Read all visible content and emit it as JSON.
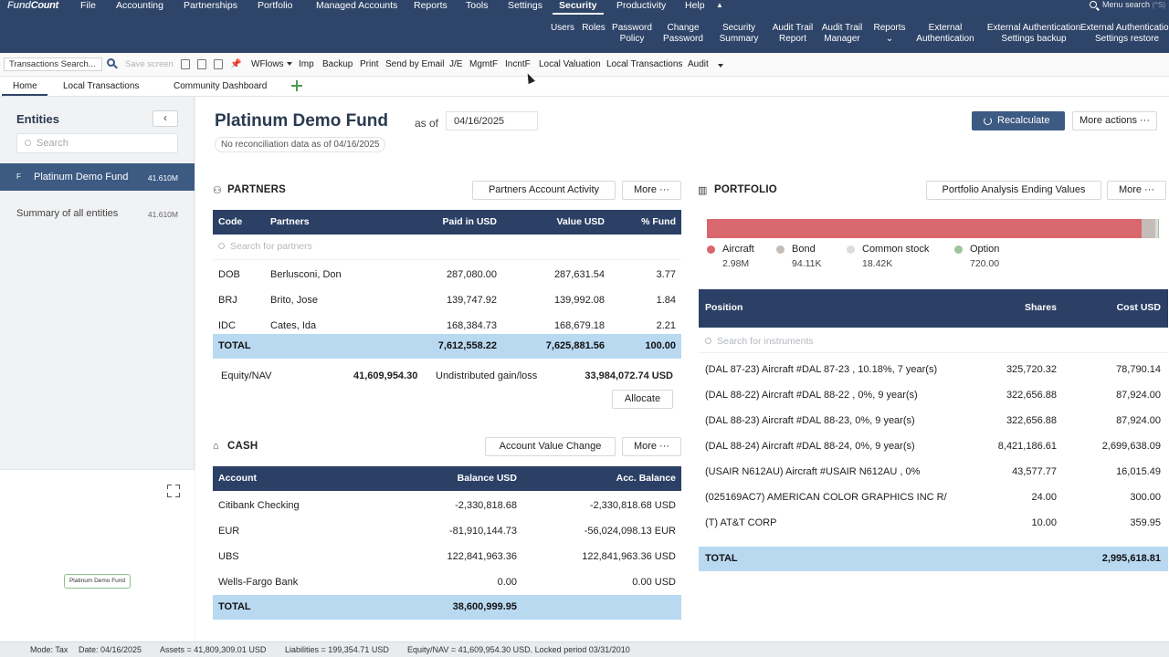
{
  "app": {
    "logo_a": "Fund",
    "logo_b": "Count"
  },
  "menu": [
    {
      "label": "File"
    },
    {
      "label": "Accounting"
    },
    {
      "label": "Partnerships"
    },
    {
      "label": "Portfolio"
    },
    {
      "label": "Managed Accounts"
    },
    {
      "label": "Reports"
    },
    {
      "label": "Tools"
    },
    {
      "label": "Settings"
    },
    {
      "label": "Security"
    },
    {
      "label": "Productivity"
    },
    {
      "label": "Help"
    }
  ],
  "menu_active": "Security",
  "menu_search": {
    "label": "Menu search",
    "shortcut": "(^S)"
  },
  "subnav": [
    {
      "l1": "Users",
      "l2": ""
    },
    {
      "l1": "Roles",
      "l2": ""
    },
    {
      "l1": "Password",
      "l2": "Policy"
    },
    {
      "l1": "Change",
      "l2": "Password"
    },
    {
      "l1": "Security",
      "l2": "Summary"
    },
    {
      "l1": "Audit Trail",
      "l2": "Report"
    },
    {
      "l1": "Audit Trail",
      "l2": "Manager"
    },
    {
      "l1": "Reports",
      "l2": "⌄"
    },
    {
      "l1": "External",
      "l2": "Authentication"
    },
    {
      "l1": "External Authentication",
      "l2": "Settings backup"
    },
    {
      "l1": "External Authentication",
      "l2": "Settings restore"
    }
  ],
  "toolbar": {
    "search_value": "Transactions Search...",
    "save_screen": "Save screen",
    "items": [
      "WFlows",
      "Imp",
      "Backup",
      "Print",
      "Send by Email",
      "J/E",
      "MgmtF",
      "IncntF",
      "Local Valuation",
      "Local Transactions",
      "Audit"
    ]
  },
  "tabs": [
    "Home",
    "Local Transactions",
    "Community Dashboard"
  ],
  "sidebar": {
    "title": "Entities",
    "search_placeholder": "Search",
    "active_entity": {
      "prefix": "F",
      "name": "Platinum Demo Fund",
      "value": "41.610M"
    },
    "summary": {
      "name": "Summary of all entities",
      "value": "41.610M"
    },
    "minimap_node": "Platinum Demo Fund"
  },
  "fund": {
    "title": "Platinum Demo Fund",
    "as_of": "as of",
    "date": "04/16/2025",
    "recon": "No reconciliation data as of 04/16/2025",
    "recalculate": "Recalculate",
    "more_actions": "More actions ···"
  },
  "partners": {
    "title": "PARTNERS",
    "activity_btn": "Partners Account Activity",
    "more_btn": "More ···",
    "headers": [
      "Code",
      "Partners",
      "Paid in USD",
      "Value USD",
      "% Fund"
    ],
    "search_placeholder": "Search for partners",
    "rows": [
      [
        "DOB",
        "Berlusconi, Don",
        "287,080.00",
        "287,631.54",
        "3.77"
      ],
      [
        "BRJ",
        "Brito, Jose",
        "139,747.92",
        "139,992.08",
        "1.84"
      ],
      [
        "IDC",
        "Cates, Ida",
        "168,384.73",
        "168,679.18",
        "2.21"
      ]
    ],
    "total": [
      "TOTAL",
      "7,612,558.22",
      "7,625,881.56",
      "100.00"
    ],
    "equity_label": "Equity/NAV",
    "equity_value": "41,609,954.30",
    "undist_label": "Undistributed gain/loss",
    "undist_value": "33,984,072.74 USD",
    "allocate": "Allocate"
  },
  "cash": {
    "title": "CASH",
    "change_btn": "Account Value Change",
    "more_btn": "More ···",
    "headers": [
      "Account",
      "Balance USD",
      "Acc. Balance"
    ],
    "rows": [
      [
        "Citibank Checking",
        "-2,330,818.68",
        "-2,330,818.68 USD"
      ],
      [
        "EUR",
        "-81,910,144.73",
        "-56,024,098.13 EUR"
      ],
      [
        "UBS",
        "122,841,963.36",
        "122,841,963.36 USD"
      ],
      [
        "Wells-Fargo Bank",
        "0.00",
        "0.00 USD"
      ]
    ],
    "total": [
      "TOTAL",
      "38,600,999.95"
    ]
  },
  "portfolio": {
    "title": "PORTFOLIO",
    "analysis_btn": "Portfolio Analysis Ending Values",
    "more_btn": "More ···",
    "allocation": [
      {
        "name": "Aircraft",
        "value": "2.98M",
        "amount": 2980000,
        "color": "#d9676e"
      },
      {
        "name": "Bond",
        "value": "94.11K",
        "amount": 94110,
        "color": "#c3bcb8"
      },
      {
        "name": "Common stock",
        "value": "18.42K",
        "amount": 18420,
        "color": "#dcdcdc"
      },
      {
        "name": "Option",
        "value": "720.00",
        "amount": 720,
        "color": "#9cc59c"
      }
    ],
    "headers": [
      "Position",
      "Shares",
      "Cost USD"
    ],
    "search_placeholder": "Search for instruments",
    "rows": [
      [
        "(DAL 87-23) Aircraft #DAL 87-23 , 10.18%, 7 year(s)",
        "325,720.32",
        "78,790.14"
      ],
      [
        "(DAL 88-22) Aircraft #DAL 88-22 , 0%, 9 year(s)",
        "322,656.88",
        "87,924.00"
      ],
      [
        "(DAL 88-23) Aircraft #DAL 88-23, 0%, 9 year(s)",
        "322,656.88",
        "87,924.00"
      ],
      [
        "(DAL 88-24) Aircraft #DAL 88-24, 0%, 9 year(s)",
        "8,421,186.61",
        "2,699,638.09"
      ],
      [
        "(USAIR N612AU) Aircraft #USAIR N612AU , 0%",
        "43,577.77",
        "16,015.49"
      ],
      [
        "(025169AC7) AMERICAN COLOR GRAPHICS INC R/",
        "24.00",
        "300.00"
      ],
      [
        "(T) AT&T CORP",
        "10.00",
        "359.95"
      ]
    ],
    "total": [
      "TOTAL",
      "2,995,618.81"
    ]
  },
  "status": {
    "mode": "Mode: Tax",
    "date": "Date: 04/16/2025",
    "assets": "Assets = 41,809,309.01 USD",
    "liabilities": "Liabilities = 199,354.71 USD",
    "equity": "Equity/NAV = 41,609,954.30 USD. Locked period 03/31/2010"
  }
}
